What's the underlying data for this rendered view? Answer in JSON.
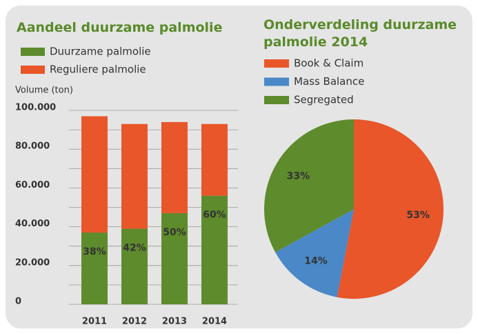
{
  "chart_data": [
    {
      "type": "stacked_bar",
      "title": "Aandeel duurzame palmolie",
      "y_label": "Volume (ton)",
      "categories": [
        "2011",
        "2012",
        "2013",
        "2014"
      ],
      "series": [
        {
          "name": "Duurzame palmolie",
          "color": "#5e8b2c",
          "values": [
            37000,
            39000,
            47000,
            56000
          ]
        },
        {
          "name": "Reguliere palmolie",
          "color": "#e8562a",
          "values": [
            60000,
            54000,
            47000,
            37000
          ]
        }
      ],
      "segment_labels": [
        "38%",
        "42%",
        "50%",
        "60%"
      ],
      "ylim": [
        0,
        100000
      ],
      "yticks": [
        0,
        {
          "value": 20000,
          "label": "20.000"
        },
        {
          "value": 40000,
          "label": "40.000"
        },
        {
          "value": 60000,
          "label": "60.000"
        },
        {
          "value": 80000,
          "label": "80.000"
        },
        {
          "value": 100000,
          "label": "100.000"
        }
      ],
      "yminor": [
        10000,
        30000,
        50000,
        70000,
        90000
      ],
      "grid": true
    },
    {
      "type": "pie",
      "title": "Onderverdeling duurzame palmolie 2014",
      "categories": [
        "Book & Claim",
        "Mass Balance",
        "Segregated"
      ],
      "values": [
        53,
        14,
        33
      ],
      "value_labels": [
        "53%",
        "14%",
        "33%"
      ],
      "colors": [
        "#e8562a",
        "#4a88c8",
        "#5e8b2c"
      ]
    }
  ]
}
